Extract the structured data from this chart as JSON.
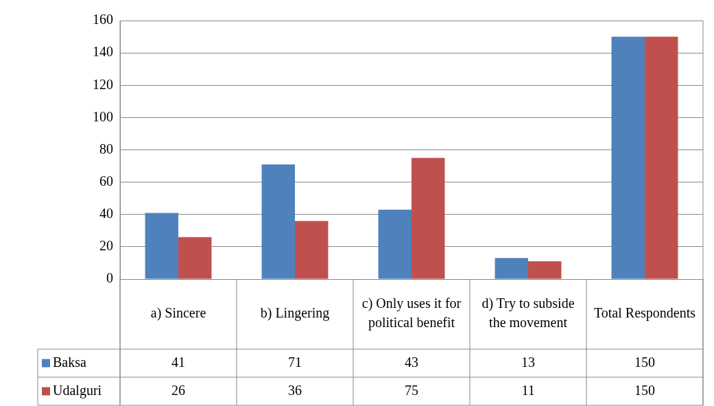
{
  "chart_data": {
    "type": "bar",
    "categories": [
      "a) Sincere",
      "b) Lingering",
      "c) Only uses it for political benefit",
      "d) Try to subside the movement",
      "Total Respondents"
    ],
    "series": [
      {
        "name": "Baksa",
        "color": "#4f81bd",
        "values": [
          41,
          71,
          43,
          13,
          150
        ]
      },
      {
        "name": "Udalguri",
        "color": "#c0504d",
        "values": [
          26,
          36,
          75,
          11,
          150
        ]
      }
    ],
    "ylim": [
      0,
      160
    ],
    "yticks": [
      0,
      20,
      40,
      60,
      80,
      100,
      120,
      140,
      160
    ],
    "grid": "y",
    "legend": "bottom",
    "data_labels": true
  }
}
